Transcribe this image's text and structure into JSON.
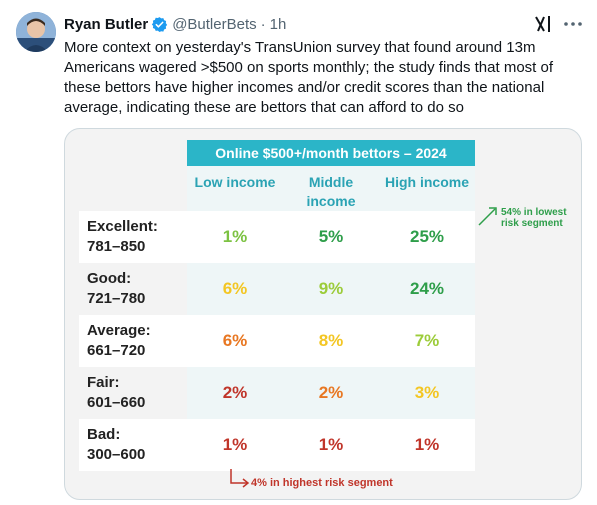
{
  "tweet": {
    "author_name": "Ryan Butler",
    "handle": "@ButlerBets",
    "separator": "·",
    "time": "1h",
    "text": "More context on yesterday's TransUnion survey that found around 13m Americans wagered >$500 on sports monthly; the study finds that most of these bettors have higher incomes and/or credit scores than the national average, indicating these are bettors that can afford to do so"
  },
  "icons": {
    "verified": "verified-badge-icon",
    "grok": "grok-icon",
    "more": "more-options-icon"
  },
  "table": {
    "title": "Online $500+/month bettors – 2024",
    "columns": [
      "Low income",
      "Middle income",
      "High income"
    ],
    "rows": [
      {
        "label_line1": "Excellent:",
        "label_line2": "781–850",
        "cells": [
          "1%",
          "5%",
          "25%"
        ]
      },
      {
        "label_line1": "Good:",
        "label_line2": "721–780",
        "cells": [
          "6%",
          "9%",
          "24%"
        ]
      },
      {
        "label_line1": "Average:",
        "label_line2": "661–720",
        "cells": [
          "6%",
          "8%",
          "7%"
        ]
      },
      {
        "label_line1": "Fair:",
        "label_line2": "601–660",
        "cells": [
          "2%",
          "2%",
          "3%"
        ]
      },
      {
        "label_line1": "Bad:",
        "label_line2": "300–600",
        "cells": [
          "1%",
          "1%",
          "1%"
        ]
      }
    ],
    "annotation_top": "54% in lowest risk segment",
    "annotation_bottom": "4% in highest risk segment"
  },
  "colors": {
    "header_bg": "#2bb5c8",
    "low_risk_green": "#2e9e4a",
    "high_risk_red": "#c0352a"
  }
}
